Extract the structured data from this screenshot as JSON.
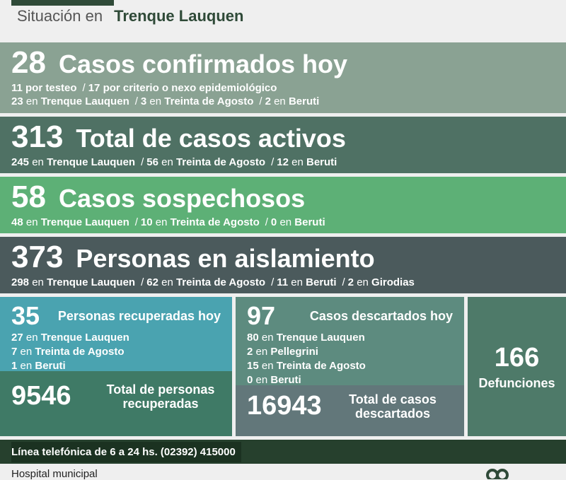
{
  "header": {
    "prefix": "Situación en",
    "city": "Trenque Lauquen"
  },
  "confirmed": {
    "value": "28",
    "title": "Casos confirmados hoy",
    "line1": {
      "a": "11 por testeo",
      "b": "17 por criterio o nexo epidemiológico"
    },
    "line2": [
      {
        "n": "23",
        "place": "Trenque Lauquen"
      },
      {
        "n": "3",
        "place": "Treinta de Agosto"
      },
      {
        "n": "2",
        "place": "Beruti"
      }
    ]
  },
  "active": {
    "value": "313",
    "title": "Total de casos activos",
    "line": [
      {
        "n": "245",
        "place": "Trenque Lauquen"
      },
      {
        "n": "56",
        "place": "Treinta de Agosto"
      },
      {
        "n": "12",
        "place": "Beruti"
      }
    ]
  },
  "suspects": {
    "value": "58",
    "title": "Casos sospechosos",
    "line": [
      {
        "n": "48",
        "place": "Trenque Lauquen"
      },
      {
        "n": "10",
        "place": "Treinta de Agosto"
      },
      {
        "n": "0",
        "place": "Beruti"
      }
    ]
  },
  "isolation": {
    "value": "373",
    "title": "Personas en aislamiento",
    "line": [
      {
        "n": "298",
        "place": "Trenque Lauquen"
      },
      {
        "n": "62",
        "place": "Treinta de Agosto"
      },
      {
        "n": "11",
        "place": "Beruti"
      },
      {
        "n": "2",
        "place": "Girodias"
      }
    ]
  },
  "en": "en",
  "recovered_today": {
    "value": "35",
    "label": "Personas recuperadas hoy",
    "lines": [
      {
        "n": "27",
        "place": "Trenque Lauquen"
      },
      {
        "n": "7",
        "place": "Treinta de Agosto"
      },
      {
        "n": "1",
        "place": "Beruti"
      }
    ]
  },
  "recovered_total": {
    "value": "9546",
    "label_1": "Total de personas",
    "label_2": "recuperadas"
  },
  "discarded_today": {
    "value": "97",
    "label": "Casos descartados hoy",
    "lines": [
      {
        "n": "80",
        "place": "Trenque Lauquen"
      },
      {
        "n": "2",
        "place": "Pellegrini"
      },
      {
        "n": "15",
        "place": "Treinta de Agosto"
      },
      {
        "n": "0",
        "place": "Beruti"
      }
    ]
  },
  "discarded_total": {
    "value": "16943",
    "label_1": "Total de casos",
    "label_2": "descartados"
  },
  "deaths": {
    "value": "166",
    "label": "Defunciones"
  },
  "phone": "Línea telefónica de 6 a 24 hs. (02392) 415000",
  "footer": "Hospital municipal",
  "colors": {
    "dark_green": "#26402d",
    "light_green": "#5db076",
    "teal": "#4aa3b0"
  }
}
